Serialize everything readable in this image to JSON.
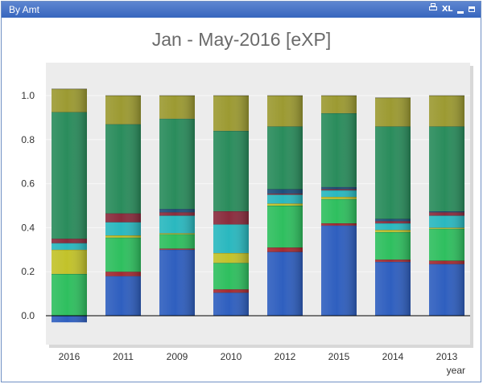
{
  "window": {
    "title": "By Amt",
    "buttons": {
      "xl_label": "XL"
    }
  },
  "chart_data": {
    "type": "bar",
    "stacked": true,
    "title": "Jan -  May-2016 [eXP]",
    "xlabel": "year",
    "ylabel": "",
    "ylim": [
      -0.04,
      1.1
    ],
    "yticks": [
      0.0,
      0.2,
      0.4,
      0.6,
      0.8,
      1.0
    ],
    "ytick_labels": [
      "0.0",
      "0.2",
      "0.4",
      "0.6",
      "0.8",
      "1.0"
    ],
    "grid": true,
    "legend": "none",
    "categories": [
      "2016",
      "2011",
      "2009",
      "2010",
      "2012",
      "2015",
      "2014",
      "2013"
    ],
    "series": [
      {
        "color": "#2f5fbf",
        "values": [
          -0.03,
          0.18,
          0.3,
          0.105,
          0.29,
          0.41,
          0.245,
          0.235
        ]
      },
      {
        "color": "#a42b32",
        "values": [
          0.0,
          0.02,
          0.005,
          0.015,
          0.02,
          0.01,
          0.01,
          0.015
        ]
      },
      {
        "color": "#2fbf5f",
        "values": [
          0.19,
          0.155,
          0.065,
          0.12,
          0.19,
          0.11,
          0.125,
          0.145
        ]
      },
      {
        "color": "#c2c22a",
        "values": [
          0.11,
          0.01,
          0.005,
          0.045,
          0.01,
          0.01,
          0.01,
          0.005
        ]
      },
      {
        "color": "#2ab8bf",
        "values": [
          0.03,
          0.06,
          0.08,
          0.13,
          0.04,
          0.03,
          0.03,
          0.055
        ]
      },
      {
        "color": "#8a2c3d",
        "values": [
          0.02,
          0.04,
          0.015,
          0.06,
          0.005,
          0.005,
          0.01,
          0.015
        ]
      },
      {
        "color": "#1e4f7a",
        "values": [
          0.0,
          0.0,
          0.015,
          0.0,
          0.02,
          0.01,
          0.01,
          0.005
        ]
      },
      {
        "color": "#2a8c5c",
        "values": [
          0.575,
          0.405,
          0.41,
          0.365,
          0.285,
          0.335,
          0.42,
          0.385
        ]
      },
      {
        "color": "#9c9a32",
        "values": [
          0.105,
          0.13,
          0.105,
          0.16,
          0.14,
          0.08,
          0.13,
          0.14
        ]
      }
    ]
  }
}
